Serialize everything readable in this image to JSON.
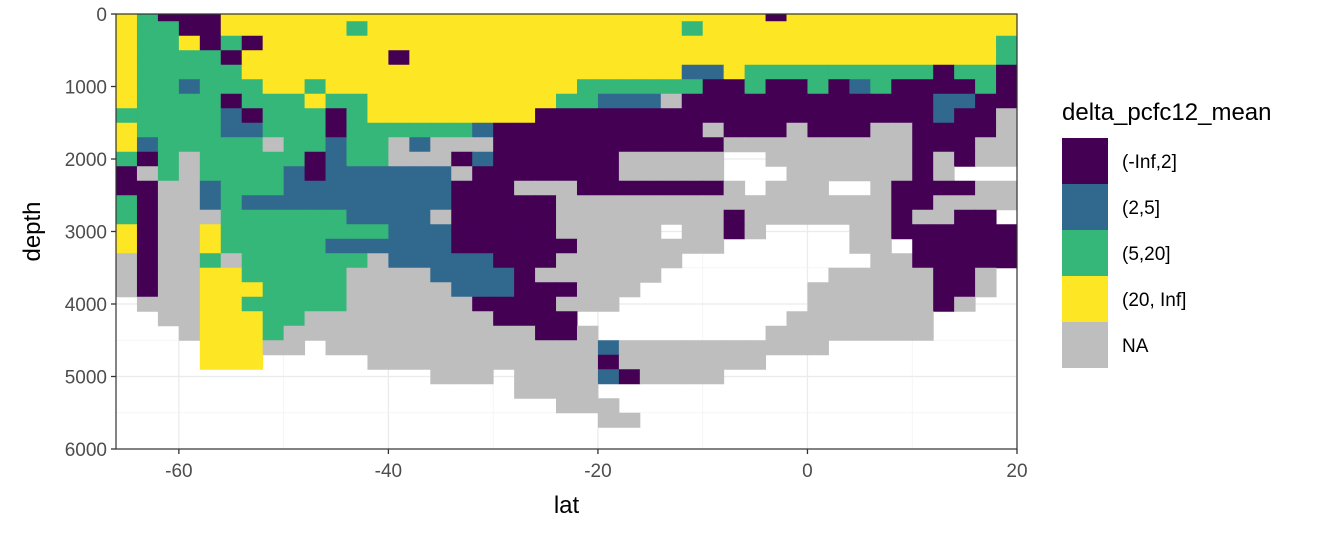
{
  "chart_data": {
    "type": "heatmap",
    "xlabel": "lat",
    "ylabel": "depth",
    "xlim": [
      -66,
      20
    ],
    "ylim": [
      0,
      6000
    ],
    "y_reversed": true,
    "x_ticks": [
      -60,
      -40,
      -20,
      0,
      20
    ],
    "x_tick_labels": [
      "-60",
      "-40",
      "-20",
      "0",
      "20"
    ],
    "y_ticks": [
      0,
      1000,
      2000,
      3000,
      4000,
      5000,
      6000
    ],
    "y_tick_labels": [
      "0",
      "1000",
      "2000",
      "3000",
      "4000",
      "5000",
      "6000"
    ],
    "grid": true,
    "legend_title": "delta_pcfc12_mean",
    "legend_position": "right",
    "categories": [
      {
        "key": "D",
        "label": "(-Inf,2]",
        "color": "#440154"
      },
      {
        "key": "B",
        "label": "(2,5]",
        "color": "#31688E"
      },
      {
        "key": "G",
        "label": "(5,20]",
        "color": "#35B779"
      },
      {
        "key": "Y",
        "label": "(20, Inf]",
        "color": "#FDE725"
      },
      {
        "key": "N",
        "label": "NA",
        "color": "#BEBEBE"
      }
    ],
    "lat_start": -65,
    "lat_step": 2,
    "depth_start": 0,
    "depth_step": 200,
    "depth_rows": [
      "YGDDDYYYYYYYYYYYYYYYYYYYYYYYYYYDYYYYYYYYYYYYG",
      "YGGDDYYYYYYGYYYYYYYYYYYYYYYGYYYYYYYYYYYYYYYYY",
      "YGGYDGDYYYYYYYYYYYYYYYYYYYYYYYYYYYYYYYYYYYGGY",
      "YGGGGDYYYYYYYDYYYYYYYYYYYYYYYYYYYYYYYYYYYYGGG",
      "YGGGGGYYYYYYYYYYYYYYYYYYYYYBBYGGGGGGGGGDGGDBB",
      "YGGBGGGYYGYYYYYYYYYYYYGGGGGGDDGDDGDBGDDDDGDDB",
      "YGGGGDGGGYGGYYYYYYYYYGGBBBNDDDDDDDDDDDDBBDDDD",
      "GGGGGBDGGGDGYYYYYYYYDDDDDDDDDDDDDDDDDDDBDDNDD",
      "YGGGGBBGGGDGGGGGGBDDDDDDDDDDNDDDNDDDNNDDDDNNN",
      "YBGGGGGNGGBGGNBNNNDDDDDDDDDDDNNNNNNNNNDDDNNNN",
      "GDGNGGGGGDBGGNNNDBDDDDDDNNNNNNNNNNNNNNDNDNNNN",
      "DNGNGGGGBDBBBBBBNDDDDDDDNNNNNNNNNNNNNNDNDNNNN",
      "DDNNBGGGBBBBBBBBDDDNNNDDDDDDDNNNNNNNNDDDDNNNN",
      "GDNNBGBBBBBBBBBBDDDDDNNNNNNNNNNNNNNNNDDNNNNNN",
      "GDNNNGGGGGGBBBBNDDDDDNNNNNNNNDNNNNNNNDNNDDNNN",
      "YDNNYGGGGGGGGBBBDDDDDNNNNNNNNDNNNNNNNDDDDDDNN",
      "YDNNYGGGGGBBBBBBDDDDDDNNNNNNNNNNNNNNNNDDDDDNN",
      "NDNNGNGGGGGGNBBBBBDDDNNNNNNNNNNNNNNNNNDDDDDNN",
      "NDNNYYGGGGGNNNNBBBBDNNNNNNNNNNNNNNNNNNNDDNNNN",
      "NDNNYYYGGGGNNNNNBBBDDDNNNNNNNNNNNNNNNNNDDNNNN",
      "NNNNYYGGGGGNNNNNNDDDDNNNNNNDNNNNNNNNNNNDNNNNN",
      "NNNNYYYGGNNNNNNNNNDDDDNNNNNNNNNNNNNNNNNDNNNNN",
      "NNNNYYYGNNNNNNNNNNNNDDNNNNNNNNNNNNNNNNNDNNNNN",
      "NNNNYYYNNNNNNNNNNNNNNNNBNNNNNNNNNNNNNNNNNNNNN",
      "NNNNYYYNNNNNNNNNNNNNNNNDNNNNNNNNNNNNNNNNNNNNN",
      "NNNNNNNNNNNNNNNNNNNNNNNBDNNNNNNNNNNNNNNNNNNNN",
      "NNNNNNNNNNNNNNNNNNNNNNNNNDNNNNNNNNNNNNNNNNNNN",
      "NNNNNNNNNNNNNNNNNNNNNNNNNNNNNNNNNNNNNNNNNNNNN",
      "NNNNNNNNNNNNNNNNNNNNNNNNNNNNNNNNNNNNNNNNNNNNN",
      "NNNNNNNNNNNNNNNNNNNNNNNNNNNNNNNNNNNNNNNNNNNNN"
    ],
    "depth_rows_valid": [
      "111111111111111111111111111111111111111111111",
      "111111111111111111111111111111111111111111111",
      "111111111111111111111111111111111111111111111",
      "111111111111111111111111111111111111111111111",
      "111111111111111111111111111111111111111111111",
      "111111111111111111111111111111111111111111111",
      "111111111111111111111111111111111111111111111",
      "111111111111111111111111111111111111111111111",
      "111111111111111111111111111111111111111111111",
      "111111111111111111111111111111111111111111111",
      "111111111111111111111111111110011111111111110",
      "111111111111111111111111111110001111111100000",
      "111111111111111111111111111111011100111111100",
      "111111111111111111111111111111111111111111100",
      "111111111111111111111111111111111111111111000",
      "111111111111111111111111110111100001111111100",
      "111111111111111111111111111110000001101111100",
      "111111111111111111111111111000000000111111100",
      "111111111111111111111111110000000011111111000",
      "111111111111111111111111100000000111111111000",
      "011111111111111111111111000000000111111110000",
      "001111111111111111111100000000001111111000000",
      "000111111111111111111110000000011111111000000",
      "000011111011111111111111111111111100000000000",
      "000011100000111111111111111111100000000000000",
      "000000000000000111011111111110000000000000000",
      "000000000000000000011110000000000000000000000",
      "000000000000000000000111000000000000000000000",
      "000000000000000000000001100000000000000000000",
      "000000000000000000000000000000000000000000000"
    ]
  }
}
